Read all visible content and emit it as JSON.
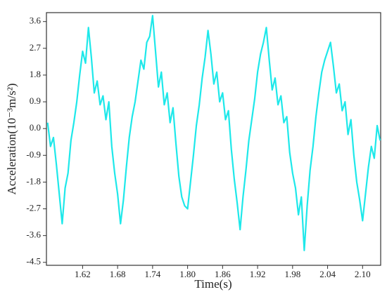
{
  "chart_data": {
    "type": "line",
    "x_label": "Time(s)",
    "y_label": "Acceleration(10⁻³m/s²)",
    "x": [
      1.56,
      1.565,
      1.57,
      1.575,
      1.58,
      1.585,
      1.59,
      1.595,
      1.6,
      1.605,
      1.61,
      1.615,
      1.62,
      1.625,
      1.63,
      1.635,
      1.64,
      1.645,
      1.65,
      1.655,
      1.66,
      1.665,
      1.67,
      1.675,
      1.68,
      1.685,
      1.69,
      1.695,
      1.7,
      1.705,
      1.71,
      1.715,
      1.72,
      1.725,
      1.73,
      1.735,
      1.74,
      1.745,
      1.75,
      1.755,
      1.76,
      1.765,
      1.77,
      1.775,
      1.78,
      1.785,
      1.79,
      1.795,
      1.8,
      1.805,
      1.81,
      1.815,
      1.82,
      1.825,
      1.83,
      1.835,
      1.84,
      1.845,
      1.85,
      1.855,
      1.86,
      1.865,
      1.87,
      1.875,
      1.88,
      1.885,
      1.89,
      1.895,
      1.9,
      1.905,
      1.91,
      1.915,
      1.92,
      1.925,
      1.93,
      1.935,
      1.94,
      1.945,
      1.95,
      1.955,
      1.96,
      1.965,
      1.97,
      1.975,
      1.98,
      1.985,
      1.99,
      1.995,
      2.0,
      2.005,
      2.01,
      2.015,
      2.02,
      2.025,
      2.03,
      2.035,
      2.04,
      2.045,
      2.05,
      2.055,
      2.06,
      2.065,
      2.07,
      2.075,
      2.08,
      2.085,
      2.09,
      2.095,
      2.1,
      2.105,
      2.11,
      2.115,
      2.12,
      2.125,
      2.13
    ],
    "series": [
      {
        "color": "#1ee8ea",
        "values": [
          0.2,
          -0.6,
          -0.3,
          -1.2,
          -2.2,
          -3.2,
          -2.0,
          -1.5,
          -0.4,
          0.2,
          0.9,
          1.8,
          2.6,
          2.2,
          3.4,
          2.4,
          1.2,
          1.6,
          0.8,
          1.1,
          0.3,
          0.9,
          -0.6,
          -1.5,
          -2.2,
          -3.2,
          -2.4,
          -1.3,
          -0.3,
          0.4,
          0.9,
          1.6,
          2.3,
          2.0,
          2.9,
          3.1,
          3.8,
          2.6,
          1.4,
          1.9,
          0.8,
          1.2,
          0.2,
          0.7,
          -0.5,
          -1.6,
          -2.3,
          -2.6,
          -2.7,
          -1.8,
          -0.9,
          0.1,
          0.8,
          1.7,
          2.4,
          3.3,
          2.5,
          1.5,
          1.9,
          0.9,
          1.2,
          0.3,
          0.6,
          -0.7,
          -1.7,
          -2.5,
          -3.4,
          -2.3,
          -1.4,
          -0.4,
          0.3,
          1.0,
          1.9,
          2.5,
          2.9,
          3.4,
          2.3,
          1.3,
          1.7,
          0.8,
          1.1,
          0.2,
          0.4,
          -0.8,
          -1.5,
          -2.0,
          -2.9,
          -2.3,
          -4.1,
          -2.6,
          -1.4,
          -0.6,
          0.4,
          1.2,
          1.9,
          2.3,
          2.6,
          2.9,
          2.1,
          1.2,
          1.5,
          0.6,
          0.9,
          -0.2,
          0.3,
          -0.9,
          -1.8,
          -2.4,
          -3.1,
          -2.2,
          -1.3,
          -0.6,
          -1.0,
          0.1,
          -0.4
        ]
      }
    ],
    "xlim": [
      1.558,
      2.131
    ],
    "xticks": [
      1.62,
      1.68,
      1.74,
      {
        "value": 1.8,
        "label": "1.80"
      },
      1.86,
      1.92,
      1.98,
      2.04,
      {
        "value": 2.1,
        "label": "2.10"
      }
    ],
    "ylim": [
      -4.6,
      3.9
    ],
    "yticks": [
      3.6,
      2.7,
      1.8,
      0.9,
      {
        "value": 0,
        "label": "0.0"
      },
      -0.9,
      -1.8,
      -2.7,
      -3.6,
      -4.5
    ]
  }
}
